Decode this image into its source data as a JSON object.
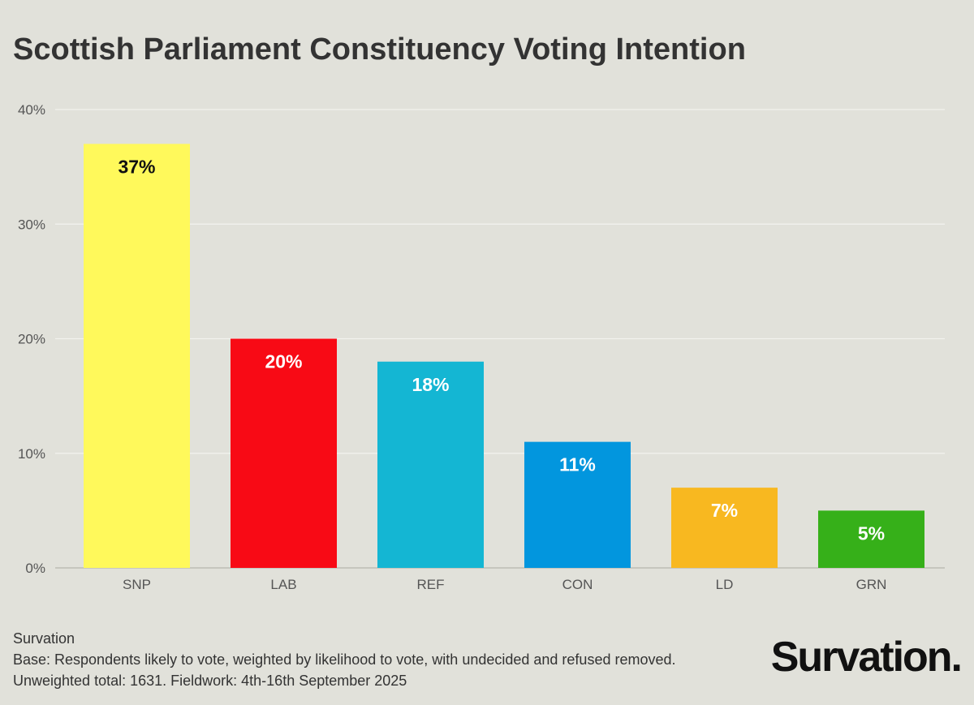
{
  "chart_data": {
    "type": "bar",
    "title": "Scottish Parliament Constituency Voting Intention",
    "categories": [
      "SNP",
      "LAB",
      "REF",
      "CON",
      "LD",
      "GRN"
    ],
    "values": [
      37,
      20,
      18,
      11,
      7,
      5
    ],
    "value_labels": [
      "37%",
      "20%",
      "18%",
      "11%",
      "7%",
      "5%"
    ],
    "colors": [
      "#fff95b",
      "#f80a15",
      "#14b6d3",
      "#0296de",
      "#f8b820",
      "#36b019"
    ],
    "label_colors": [
      "#111111",
      "#ffffff",
      "#ffffff",
      "#ffffff",
      "#ffffff",
      "#ffffff"
    ],
    "ylim": [
      0,
      40
    ],
    "yticks": [
      0,
      10,
      20,
      30,
      40
    ],
    "ytick_labels": [
      "0%",
      "10%",
      "20%",
      "30%",
      "40%"
    ],
    "xlabel": "",
    "ylabel": "",
    "grid": true
  },
  "footer": {
    "source": "Survation",
    "base": "Base: Respondents likely to vote, weighted by likelihood to vote, with undecided and refused removed.",
    "fieldwork": "Unweighted total: 1631. Fieldwork: 4th-16th September 2025"
  },
  "brand": {
    "logo_text": "Survation."
  }
}
